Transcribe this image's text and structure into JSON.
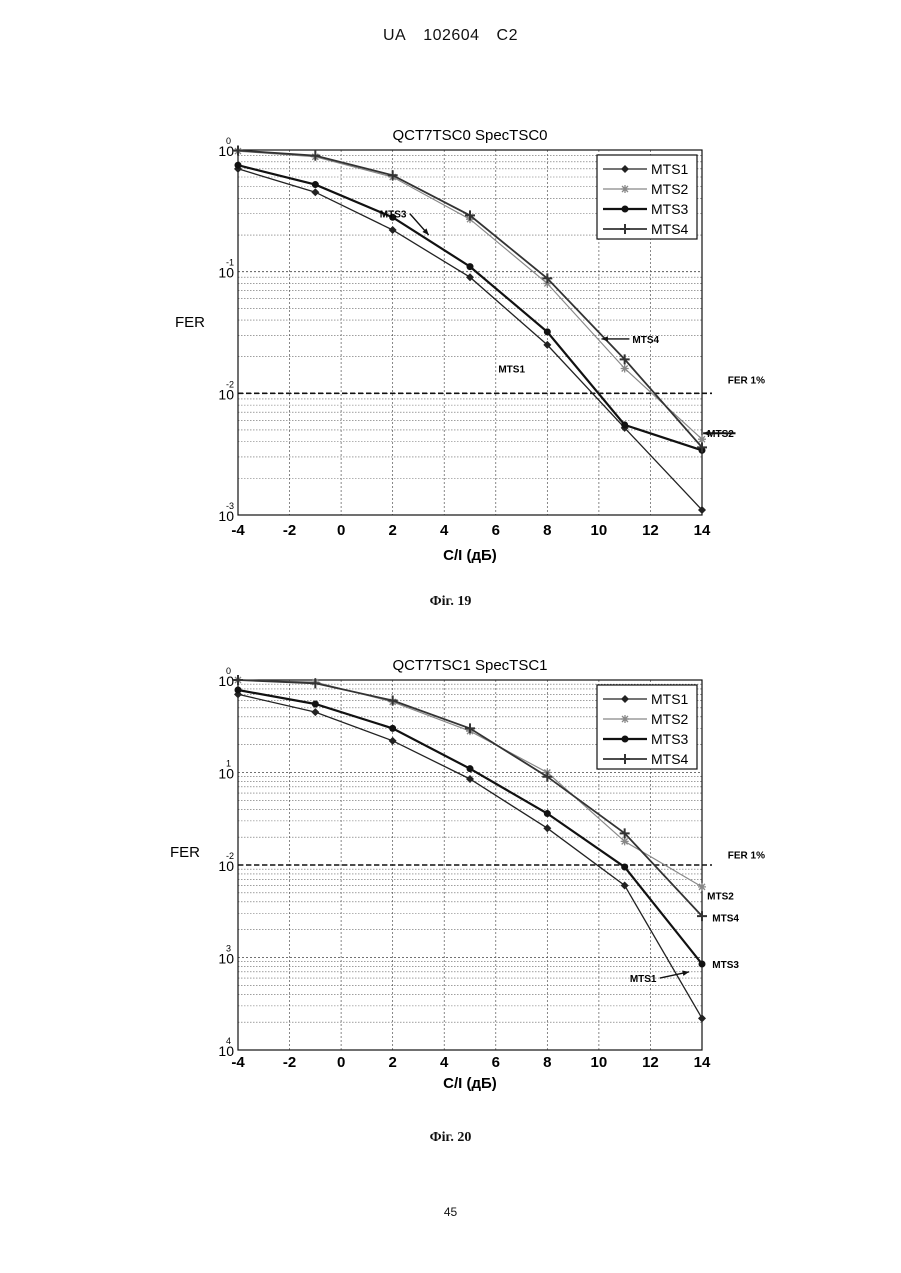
{
  "header": {
    "left": "UA",
    "number": "102604",
    "code": "C2"
  },
  "captions": [
    "Фіг. 19",
    "Фіг. 20"
  ],
  "page_number": "45",
  "chart_data": [
    {
      "type": "line",
      "title": "QCT7TSC0 SpecTSC0",
      "xlabel": "C/I (дБ)",
      "ylabel": "FER",
      "y_scale": "log",
      "xlim": [
        -4,
        14
      ],
      "ylim": [
        0.001,
        1
      ],
      "x_ticks": [
        "-4",
        "-2",
        "0",
        "2",
        "4",
        "6",
        "8",
        "10",
        "12",
        "14"
      ],
      "y_ticks": [
        {
          "base": "10",
          "exp": "0",
          "value": 1
        },
        {
          "base": "10",
          "exp": "-1",
          "value": 0.1
        },
        {
          "base": "10",
          "exp": "-2",
          "value": 0.01
        },
        {
          "base": "10",
          "exp": "-3",
          "value": 0.001
        }
      ],
      "grid": true,
      "legend_position": "top-right",
      "reference_line": {
        "value": 0.01,
        "label": "FER  1%"
      },
      "series": [
        {
          "name": "MTS1",
          "x": [
            -4,
            -1,
            2,
            5,
            8,
            11,
            14
          ],
          "y": [
            0.7,
            0.45,
            0.22,
            0.09,
            0.025,
            0.0052,
            0.0011
          ]
        },
        {
          "name": "MTS2",
          "x": [
            -4,
            -1,
            2,
            5,
            8,
            11,
            14
          ],
          "y": [
            0.98,
            0.88,
            0.6,
            0.27,
            0.08,
            0.016,
            0.0042
          ]
        },
        {
          "name": "MTS3",
          "x": [
            -4,
            -1,
            2,
            5,
            8,
            11,
            14
          ],
          "y": [
            0.75,
            0.52,
            0.28,
            0.11,
            0.032,
            0.0055,
            0.0034
          ]
        },
        {
          "name": "MTS4",
          "x": [
            -4,
            -1,
            2,
            5,
            8,
            11,
            14
          ],
          "y": [
            0.99,
            0.9,
            0.62,
            0.29,
            0.088,
            0.019,
            0.0036
          ]
        }
      ],
      "annotations": [
        {
          "text": "MTS3",
          "x": 1.5,
          "y": 0.3,
          "arrow_to": [
            3.4,
            0.2
          ]
        },
        {
          "text": "MTS1",
          "x": 6.1,
          "y": 0.016
        },
        {
          "text": "MTS4",
          "x": 11.3,
          "y": 0.028,
          "arrow_to": [
            10.1,
            0.028
          ]
        },
        {
          "text": "MTS2",
          "x": 14.2,
          "y": 0.0047,
          "arrow_from": [
            15.3,
            0.0047
          ]
        },
        {
          "text": "FER  1%",
          "x": 15.0,
          "y": 0.013
        }
      ]
    },
    {
      "type": "line",
      "title": "QCT7TSC1 SpecTSC1",
      "xlabel": "C/I (дБ)",
      "ylabel": "FER",
      "y_scale": "log",
      "xlim": [
        -4,
        14
      ],
      "ylim": [
        0.0001,
        1
      ],
      "x_ticks": [
        "-4",
        "-2",
        "0",
        "2",
        "4",
        "6",
        "8",
        "10",
        "12",
        "14"
      ],
      "y_ticks": [
        {
          "base": "10",
          "exp": "0",
          "value": 1
        },
        {
          "base": "10",
          "exp": "1",
          "value": 0.1
        },
        {
          "base": "10",
          "exp": "-2",
          "value": 0.01
        },
        {
          "base": "10",
          "exp": "3",
          "value": 0.001
        },
        {
          "base": "10",
          "exp": "4",
          "value": 0.0001
        }
      ],
      "grid": true,
      "legend_position": "top-right",
      "reference_line": {
        "value": 0.01,
        "label": "FER  1%"
      },
      "series": [
        {
          "name": "MTS1",
          "x": [
            -4,
            -1,
            2,
            5,
            8,
            11,
            14
          ],
          "y": [
            0.7,
            0.45,
            0.22,
            0.085,
            0.025,
            0.006,
            0.00022
          ]
        },
        {
          "name": "MTS2",
          "x": [
            -4,
            -1,
            2,
            5,
            8,
            11,
            14
          ],
          "y": [
            1.0,
            0.95,
            0.58,
            0.28,
            0.1,
            0.018,
            0.0058
          ]
        },
        {
          "name": "MTS3",
          "x": [
            -4,
            -1,
            2,
            5,
            8,
            11,
            14
          ],
          "y": [
            0.78,
            0.55,
            0.3,
            0.11,
            0.036,
            0.0095,
            0.00085
          ]
        },
        {
          "name": "MTS4",
          "x": [
            -4,
            -1,
            2,
            5,
            8,
            11,
            14
          ],
          "y": [
            1.0,
            0.92,
            0.6,
            0.3,
            0.09,
            0.022,
            0.0028
          ]
        }
      ],
      "annotations": [
        {
          "text": "FER  1%",
          "x": 15.0,
          "y": 0.013
        },
        {
          "text": "MTS2",
          "x": 14.2,
          "y": 0.0047
        },
        {
          "text": "MTS4",
          "x": 14.4,
          "y": 0.0027
        },
        {
          "text": "MTS3",
          "x": 14.4,
          "y": 0.00085
        },
        {
          "text": "MTS1",
          "x": 11.2,
          "y": 0.0006,
          "arrow_to": [
            13.5,
            0.0007
          ]
        }
      ]
    }
  ]
}
